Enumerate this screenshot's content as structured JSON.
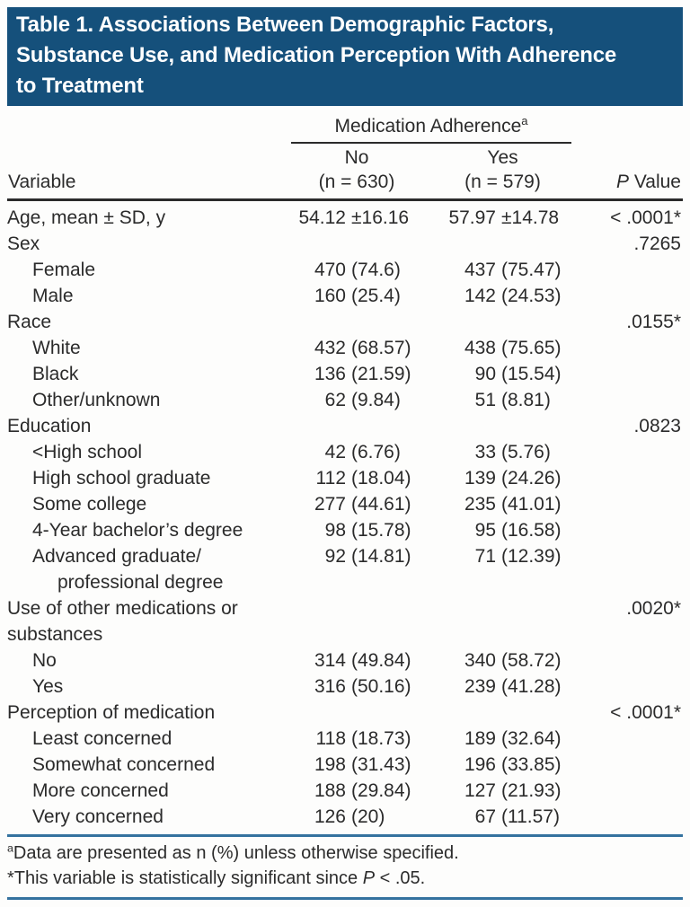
{
  "title": {
    "lines": [
      "Table 1. Associations Between Demographic Factors,",
      "Substance Use, and Medication Perception With Adherence",
      "to Treatment"
    ]
  },
  "table": {
    "spanner": {
      "label": "Medication Adherence",
      "sup": "a"
    },
    "col_headers": {
      "variable": "Variable",
      "no_line1": "No",
      "no_line2": "(n = 630)",
      "yes_line1": "Yes",
      "yes_line2": "(n = 579)",
      "p_italic": "P",
      "p_rest": " Value"
    },
    "rows": [
      {
        "label": "Age, mean ± SD, y",
        "no_n": "54.12",
        "no_p": "±16.16",
        "yes_n": "57.97",
        "yes_p": "±14.78",
        "p": "< .0001*"
      },
      {
        "label": "Sex",
        "no_n": "",
        "no_p": "",
        "yes_n": "",
        "yes_p": "",
        "p": ".7265"
      },
      {
        "label": "Female",
        "no_n": "470",
        "no_p": "(74.6)",
        "yes_n": "437",
        "yes_p": "(75.47)",
        "p": ""
      },
      {
        "label": "Male",
        "no_n": "160",
        "no_p": "(25.4)",
        "yes_n": "142",
        "yes_p": "(24.53)",
        "p": ""
      },
      {
        "label": "Race",
        "no_n": "",
        "no_p": "",
        "yes_n": "",
        "yes_p": "",
        "p": ".0155*"
      },
      {
        "label": "White",
        "no_n": "432",
        "no_p": "(68.57)",
        "yes_n": "438",
        "yes_p": "(75.65)",
        "p": ""
      },
      {
        "label": "Black",
        "no_n": "136",
        "no_p": "(21.59)",
        "yes_n": "90",
        "yes_p": "(15.54)",
        "p": ""
      },
      {
        "label": "Other/unknown",
        "no_n": "62",
        "no_p": "(9.84)",
        "yes_n": "51",
        "yes_p": "(8.81)",
        "p": ""
      },
      {
        "label": "Education",
        "no_n": "",
        "no_p": "",
        "yes_n": "",
        "yes_p": "",
        "p": ".0823"
      },
      {
        "label": "<High school",
        "no_n": "42",
        "no_p": "(6.76)",
        "yes_n": "33",
        "yes_p": "(5.76)",
        "p": ""
      },
      {
        "label": "High school graduate",
        "no_n": "112",
        "no_p": "(18.04)",
        "yes_n": "139",
        "yes_p": "(24.26)",
        "p": ""
      },
      {
        "label": "Some college",
        "no_n": "277",
        "no_p": "(44.61)",
        "yes_n": "235",
        "yes_p": "(41.01)",
        "p": ""
      },
      {
        "label": "4-Year bachelor’s degree",
        "no_n": "98",
        "no_p": "(15.78)",
        "yes_n": "95",
        "yes_p": "(16.58)",
        "p": ""
      },
      {
        "label": "Advanced graduate/",
        "label2": "professional degree",
        "no_n": "92",
        "no_p": "(14.81)",
        "yes_n": "71",
        "yes_p": "(12.39)",
        "p": ""
      },
      {
        "label": "Use of other medications or",
        "label2": "substances",
        "no_n": "",
        "no_p": "",
        "yes_n": "",
        "yes_p": "",
        "p": ".0020*"
      },
      {
        "label": "No",
        "no_n": "314",
        "no_p": "(49.84)",
        "yes_n": "340",
        "yes_p": "(58.72)",
        "p": ""
      },
      {
        "label": "Yes",
        "no_n": "316",
        "no_p": "(50.16)",
        "yes_n": "239",
        "yes_p": "(41.28)",
        "p": ""
      },
      {
        "label": "Perception of medication",
        "no_n": "",
        "no_p": "",
        "yes_n": "",
        "yes_p": "",
        "p": "< .0001*"
      },
      {
        "label": "Least concerned",
        "no_n": "118",
        "no_p": "(18.73)",
        "yes_n": "189",
        "yes_p": "(32.64)",
        "p": ""
      },
      {
        "label": "Somewhat concerned",
        "no_n": "198",
        "no_p": "(31.43)",
        "yes_n": "196",
        "yes_p": "(33.85)",
        "p": ""
      },
      {
        "label": "More concerned",
        "no_n": "188",
        "no_p": "(29.84)",
        "yes_n": "127",
        "yes_p": "(21.93)",
        "p": ""
      },
      {
        "label": "Very concerned",
        "no_n": "126",
        "no_p": "(20)",
        "yes_n": "67",
        "yes_p": "(11.57)",
        "p": ""
      }
    ]
  },
  "footnotes": {
    "a_sup": "a",
    "a_text": "Data are presented as n (%) unless otherwise specified.",
    "star_pre": "*This variable is statistically significant since ",
    "star_italic": "P",
    "star_post": " < .05."
  },
  "colors": {
    "header_bg": "#15507b",
    "rule_blue": "#34729f",
    "rule_dark": "#2b2b2b",
    "text": "#2b2b2b"
  }
}
